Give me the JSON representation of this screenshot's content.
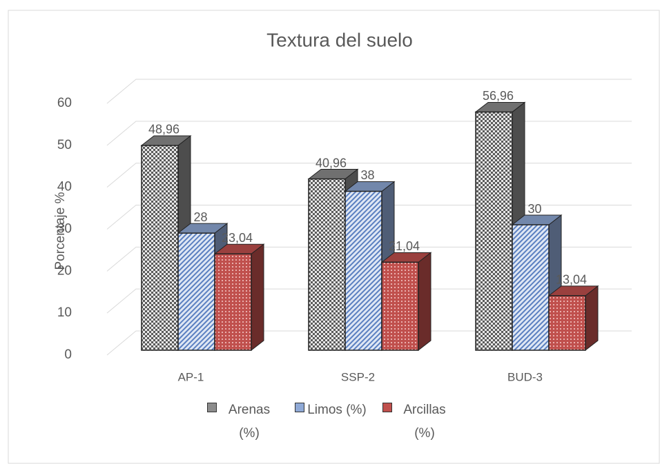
{
  "chart_data": {
    "type": "bar3d",
    "title": "Textura del suelo",
    "ylabel": "Porcentaje %",
    "categories": [
      "AP-1",
      "SSP-2",
      "BUD-3"
    ],
    "series": [
      {
        "name": "Arenas (%)",
        "color": "#8c8c8c",
        "values": [
          48.96,
          40.96,
          56.96
        ],
        "value_labels": [
          "48,96",
          "40,96",
          "56,96"
        ]
      },
      {
        "name": "Limos (%)",
        "color": "#8fa9d6",
        "values": [
          28,
          38,
          30
        ],
        "value_labels": [
          "28",
          "38",
          "30"
        ]
      },
      {
        "name": "Arcillas (%)",
        "color": "#c0504d",
        "values": [
          23.04,
          21.04,
          13.04
        ],
        "value_labels": [
          "23,04",
          "21,04",
          "13,04"
        ]
      }
    ],
    "ylim": [
      0,
      60
    ],
    "yticks": [
      0,
      10,
      20,
      30,
      40,
      50,
      60
    ],
    "grid": true
  }
}
